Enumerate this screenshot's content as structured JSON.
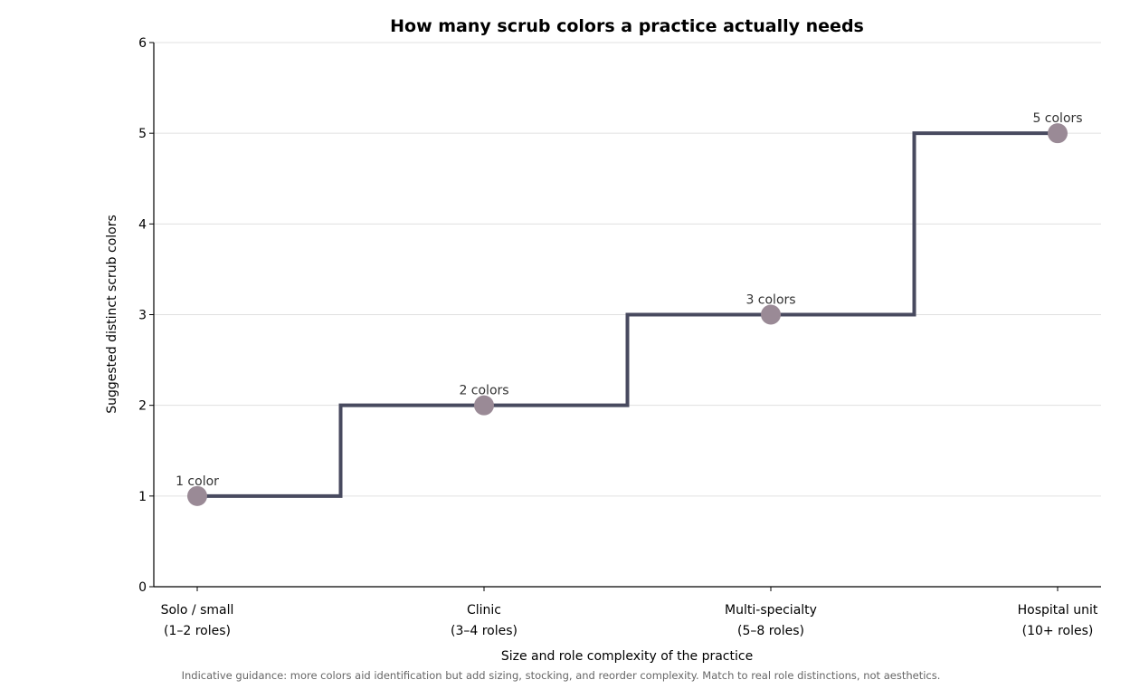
{
  "chart_data": {
    "type": "line",
    "step": "mid",
    "title": "How many scrub colors a practice actually needs",
    "xlabel": "Size and role complexity of the practice",
    "ylabel": "Suggested distinct scrub colors",
    "categories": [
      [
        "Solo / small",
        "(1–2 roles)"
      ],
      [
        "Clinic",
        "(3–4 roles)"
      ],
      [
        "Multi-specialty",
        "(5–8 roles)"
      ],
      [
        "Hospital unit",
        "(10+ roles)"
      ]
    ],
    "values": [
      1,
      2,
      3,
      5
    ],
    "point_labels": [
      "1 color",
      "2 colors",
      "3 colors",
      "5 colors"
    ],
    "ylim": [
      0,
      6
    ],
    "yticks": [
      "0",
      "1",
      "2",
      "3",
      "4",
      "5",
      "6"
    ],
    "grid": "horizontal",
    "legend": "none",
    "colors": {
      "line": "#484a5f",
      "marker": "#9a8a96",
      "grid": "#e0e0e0",
      "axis": "#000000"
    },
    "footnote": "Indicative guidance: more colors aid identification but add sizing, stocking, and reorder complexity. Match to real role distinctions, not aesthetics."
  }
}
